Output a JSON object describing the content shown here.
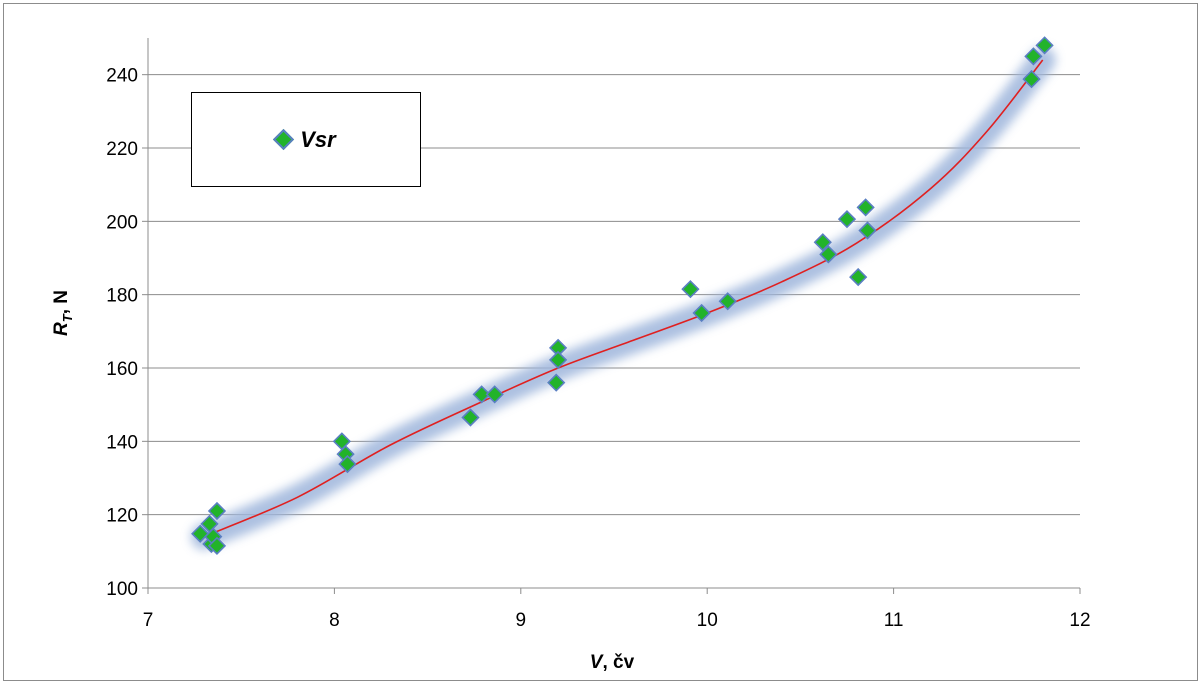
{
  "chart_data": {
    "type": "scatter",
    "title": "",
    "xlabel": {
      "italic": "V",
      "rest": ", čv"
    },
    "ylabel": {
      "main": "R",
      "sub": "T",
      "rest": ", N"
    },
    "xlim": [
      7,
      12
    ],
    "ylim": [
      100,
      250
    ],
    "xticks": [
      7,
      8,
      9,
      10,
      11,
      12
    ],
    "yticks": [
      100,
      120,
      140,
      160,
      180,
      200,
      220,
      240
    ],
    "grid": "horizontal",
    "legend": {
      "position": "top-left",
      "entries": [
        "Vsr"
      ]
    },
    "colors": {
      "marker_fill": "#22b32a",
      "marker_edge": "#5a7fc2",
      "trend": "#e02020",
      "glow": "#9fb6dc"
    },
    "series": [
      {
        "name": "Vsr",
        "points": [
          [
            7.28,
            114.8
          ],
          [
            7.33,
            117.5
          ],
          [
            7.34,
            112.0
          ],
          [
            7.35,
            114.0
          ],
          [
            7.37,
            121.0
          ],
          [
            7.37,
            111.5
          ],
          [
            8.04,
            140.0
          ],
          [
            8.06,
            136.5
          ],
          [
            8.07,
            133.8
          ],
          [
            8.73,
            146.5
          ],
          [
            8.79,
            152.8
          ],
          [
            8.86,
            152.8
          ],
          [
            9.19,
            156.0
          ],
          [
            9.2,
            165.5
          ],
          [
            9.2,
            162.2
          ],
          [
            9.91,
            181.5
          ],
          [
            9.97,
            175.0
          ],
          [
            10.11,
            178.2
          ],
          [
            10.62,
            194.3
          ],
          [
            10.65,
            191.0
          ],
          [
            10.75,
            200.6
          ],
          [
            10.81,
            184.8
          ],
          [
            10.85,
            203.8
          ],
          [
            10.86,
            197.5
          ],
          [
            11.74,
            238.8
          ],
          [
            11.75,
            245.0
          ],
          [
            11.81,
            248.0
          ]
        ]
      }
    ],
    "trendline": {
      "type": "polynomial",
      "points": [
        [
          7.3,
          114.0
        ],
        [
          7.8,
          124.7
        ],
        [
          8.3,
          139.0
        ],
        [
          8.8,
          151.0
        ],
        [
          9.2,
          160.0
        ],
        [
          9.6,
          167.5
        ],
        [
          10.0,
          175.0
        ],
        [
          10.4,
          183.5
        ],
        [
          10.8,
          194.0
        ],
        [
          11.2,
          209.0
        ],
        [
          11.5,
          224.5
        ],
        [
          11.8,
          244.0
        ]
      ]
    }
  }
}
